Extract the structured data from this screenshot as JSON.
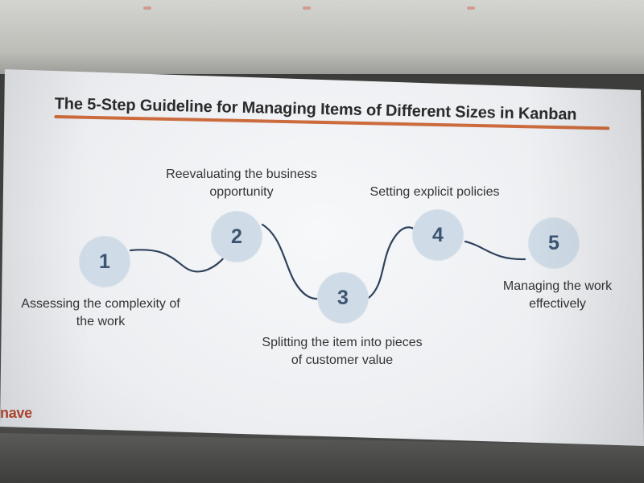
{
  "slide": {
    "title": "The 5-Step Guideline for Managing Items of Different Sizes in Kanban",
    "brand_text": "nave",
    "steps": [
      {
        "number": "1",
        "label": "Assessing the complexity of the work"
      },
      {
        "number": "2",
        "label": "Reevaluating the business opportunity"
      },
      {
        "number": "3",
        "label": "Splitting the item into pieces of customer value"
      },
      {
        "number": "4",
        "label": "Setting explicit policies"
      },
      {
        "number": "5",
        "label": "Managing the work effectively"
      }
    ]
  },
  "colors": {
    "title_underline": "#cc6b3d",
    "node_fill": "#cfdbe6",
    "node_text": "#3c5572",
    "path_line": "#2f425b",
    "brand": "#b24731"
  }
}
